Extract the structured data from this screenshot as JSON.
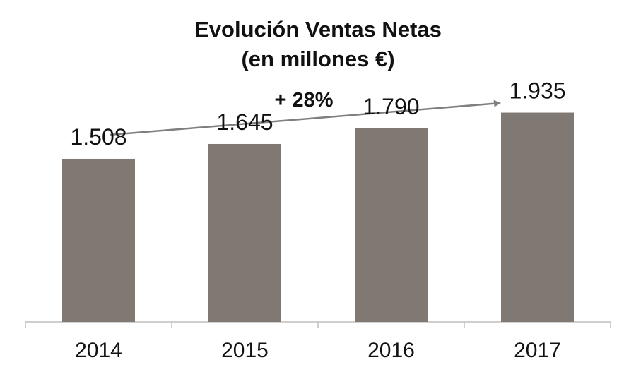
{
  "chart_data": {
    "type": "bar",
    "title": "Evolución Ventas Netas",
    "subtitle": "(en millones €)",
    "categories": [
      "2014",
      "2015",
      "2016",
      "2017"
    ],
    "values": [
      1508,
      1645,
      1790,
      1935
    ],
    "value_labels": [
      "1.508",
      "1.645",
      "1.790",
      "1.935"
    ],
    "bar_color": "#7f7873",
    "annotation": "+ 28%",
    "xlabel": "",
    "ylabel": "",
    "ylim": [
      0,
      2650
    ]
  }
}
